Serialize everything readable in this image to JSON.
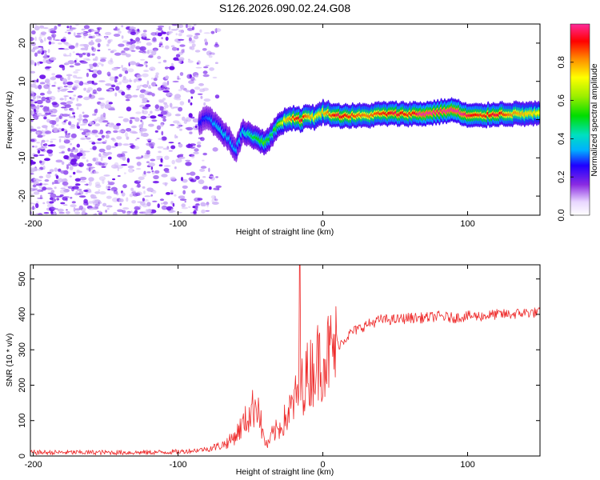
{
  "title": "S126.2026.090.02.24.G08",
  "colors": {
    "spec_strong": "#6a0dea",
    "spec_mid": "#9b5cf0",
    "spec_light": "#d2b9f7",
    "snr_line": "#ee2a2a",
    "axis": "#000000"
  },
  "chart_data": [
    {
      "type": "heatmap",
      "name": "spectrogram",
      "xlabel": "Height of straight line (km)",
      "ylabel": "Frequency (Hz)",
      "xlim": [
        -202,
        150
      ],
      "ylim": [
        -25,
        25
      ],
      "xticks": [
        "-200",
        "-100",
        "0",
        "100"
      ],
      "yticks": [
        "-20",
        "-10",
        "0",
        "10",
        "20"
      ],
      "colorbar": {
        "label": "Normalized spectral amplitude",
        "range": [
          0,
          1
        ],
        "ticks": [
          "0.0",
          "0.2",
          "0.4",
          "0.6",
          "0.8"
        ]
      },
      "ridge": {
        "x": [
          -85,
          -80,
          -75,
          -70,
          -65,
          -60,
          -55,
          -50,
          -45,
          -40,
          -35,
          -30,
          -25,
          -20,
          -15,
          -10,
          -5,
          0,
          10,
          20,
          30,
          40,
          50,
          60,
          70,
          80,
          90,
          100,
          110,
          120,
          130,
          140,
          150
        ],
        "freq": [
          -1,
          1,
          -1,
          -3,
          -5,
          -8,
          -3,
          -4,
          -5,
          -6,
          -4,
          -1,
          0,
          0.5,
          0,
          1,
          0.5,
          2,
          1,
          1,
          1,
          1.5,
          1.5,
          1.5,
          1.5,
          2,
          2.5,
          1,
          1,
          1.5,
          1.5,
          1.5,
          1.5
        ],
        "amplitude": [
          0.2,
          0.25,
          0.3,
          0.35,
          0.3,
          0.3,
          0.35,
          0.45,
          0.5,
          0.55,
          0.45,
          0.6,
          0.75,
          0.85,
          0.9,
          0.8,
          0.7,
          0.75,
          0.9,
          0.85,
          0.8,
          0.85,
          0.9,
          0.85,
          0.95,
          0.9,
          0.95,
          0.9,
          0.85,
          0.9,
          0.8,
          0.75,
          0.7
        ]
      }
    },
    {
      "type": "line",
      "name": "snr",
      "xlabel": "Height of straight line (km)",
      "ylabel": "SNR (10 * v/v)",
      "xlim": [
        -202,
        150
      ],
      "ylim": [
        0,
        540
      ],
      "xticks": [
        "-200",
        "-100",
        "0",
        "100"
      ],
      "yticks": [
        "0",
        "100",
        "200",
        "300",
        "400",
        "500"
      ],
      "series": [
        {
          "name": "SNR",
          "x": [
            -202,
            -180,
            -160,
            -140,
            -120,
            -100,
            -90,
            -80,
            -75,
            -70,
            -65,
            -60,
            -55,
            -50,
            -45,
            -42,
            -40,
            -38,
            -35,
            -30,
            -25,
            -20,
            -15,
            -10,
            -5,
            0,
            5,
            10,
            15,
            20,
            30,
            40,
            50,
            60,
            70,
            80,
            90,
            100,
            110,
            120,
            130,
            140,
            150
          ],
          "values": [
            10,
            10,
            10,
            10,
            10,
            12,
            15,
            20,
            25,
            30,
            40,
            60,
            90,
            120,
            160,
            70,
            40,
            30,
            60,
            80,
            110,
            150,
            200,
            230,
            260,
            280,
            290,
            310,
            330,
            350,
            370,
            385,
            385,
            390,
            390,
            395,
            390,
            395,
            395,
            400,
            400,
            405,
            405
          ]
        }
      ]
    }
  ]
}
